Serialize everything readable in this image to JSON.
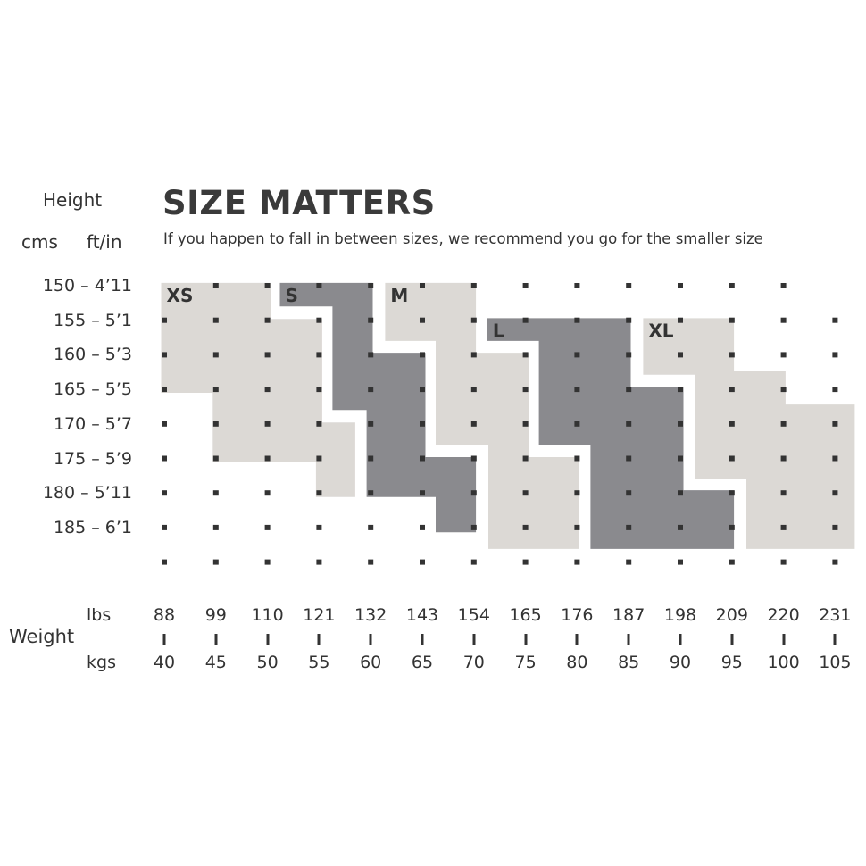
{
  "title": "SIZE MATTERS",
  "subtitle": "If you happen to fall in between sizes, we recommend you go for the smaller size",
  "axis": {
    "height_label": "Height",
    "cms_label": "cms",
    "ftin_label": "ft/in",
    "weight_label": "Weight",
    "lbs_label": "lbs",
    "kgs_label": "kgs"
  },
  "chart_data": {
    "type": "area",
    "title": "SIZE MATTERS",
    "y_rows": [
      {
        "cm": 150,
        "label": "150 – 4’11"
      },
      {
        "cm": 155,
        "label": "155 – 5’1"
      },
      {
        "cm": 160,
        "label": "160 – 5’3"
      },
      {
        "cm": 165,
        "label": "165 – 5’5"
      },
      {
        "cm": 170,
        "label": "170 – 5’7"
      },
      {
        "cm": 175,
        "label": "175 – 5’9"
      },
      {
        "cm": 180,
        "label": "180 – 5’11"
      },
      {
        "cm": 185,
        "label": "185 – 6’1"
      }
    ],
    "x_columns": [
      {
        "kg": "40",
        "lbs": "88"
      },
      {
        "kg": "45",
        "lbs": "99"
      },
      {
        "kg": "50",
        "lbs": "110"
      },
      {
        "kg": "55",
        "lbs": "121"
      },
      {
        "kg": "60",
        "lbs": "132"
      },
      {
        "kg": "65",
        "lbs": "143"
      },
      {
        "kg": "70",
        "lbs": "154"
      },
      {
        "kg": "75",
        "lbs": "165"
      },
      {
        "kg": "80",
        "lbs": "176"
      },
      {
        "kg": "85",
        "lbs": "187"
      },
      {
        "kg": "90",
        "lbs": "198"
      },
      {
        "kg": "95",
        "lbs": "209"
      },
      {
        "kg": "100",
        "lbs": "220"
      },
      {
        "kg": "105",
        "lbs": "231"
      }
    ],
    "colors": {
      "light": "#dcd9d5",
      "dark": "#8a8a8e",
      "dot": "#333333",
      "text": "#333333"
    },
    "sizes": [
      {
        "name": "XS",
        "shade": "light",
        "outline_kg_cm": [
          [
            39.7,
            149.6
          ],
          [
            50.3,
            149.6
          ],
          [
            50.3,
            154.8
          ],
          [
            55.3,
            154.8
          ],
          [
            55.3,
            169.8
          ],
          [
            58.5,
            169.8
          ],
          [
            58.5,
            180.6
          ],
          [
            54.7,
            180.6
          ],
          [
            54.7,
            175.5
          ],
          [
            44.7,
            175.5
          ],
          [
            44.7,
            165.5
          ],
          [
            39.7,
            165.5
          ]
        ]
      },
      {
        "name": "S",
        "shade": "dark",
        "outline_kg_cm": [
          [
            51.2,
            149.6
          ],
          [
            60.2,
            149.6
          ],
          [
            60.2,
            159.7
          ],
          [
            65.3,
            159.7
          ],
          [
            65.3,
            174.8
          ],
          [
            70.2,
            174.8
          ],
          [
            70.2,
            185.7
          ],
          [
            66.3,
            185.7
          ],
          [
            66.3,
            180.6
          ],
          [
            59.6,
            180.6
          ],
          [
            59.6,
            168.0
          ],
          [
            56.3,
            168.0
          ],
          [
            56.3,
            153.0
          ],
          [
            51.2,
            153.0
          ]
        ]
      },
      {
        "name": "M",
        "shade": "light",
        "outline_kg_cm": [
          [
            61.4,
            149.6
          ],
          [
            70.2,
            149.6
          ],
          [
            70.2,
            159.7
          ],
          [
            75.3,
            159.7
          ],
          [
            75.3,
            174.8
          ],
          [
            80.2,
            174.8
          ],
          [
            80.2,
            188.1
          ],
          [
            71.4,
            188.1
          ],
          [
            71.4,
            173.0
          ],
          [
            66.3,
            173.0
          ],
          [
            66.3,
            158.0
          ],
          [
            61.4,
            158.0
          ]
        ]
      },
      {
        "name": "L",
        "shade": "dark",
        "outline_kg_cm": [
          [
            71.3,
            154.7
          ],
          [
            85.2,
            154.7
          ],
          [
            85.2,
            164.7
          ],
          [
            90.3,
            164.7
          ],
          [
            90.3,
            179.6
          ],
          [
            95.2,
            179.6
          ],
          [
            95.2,
            188.1
          ],
          [
            81.3,
            188.1
          ],
          [
            81.3,
            173.0
          ],
          [
            76.3,
            173.0
          ],
          [
            76.3,
            158.0
          ],
          [
            71.3,
            158.0
          ]
        ]
      },
      {
        "name": "XL",
        "shade": "light",
        "outline_kg_cm": [
          [
            86.4,
            154.7
          ],
          [
            95.2,
            154.7
          ],
          [
            95.2,
            162.3
          ],
          [
            100.2,
            162.3
          ],
          [
            100.2,
            167.2
          ],
          [
            106.9,
            167.2
          ],
          [
            106.9,
            188.1
          ],
          [
            96.4,
            188.1
          ],
          [
            96.4,
            178.0
          ],
          [
            91.4,
            178.0
          ],
          [
            91.4,
            162.9
          ],
          [
            86.4,
            162.9
          ]
        ]
      }
    ]
  }
}
